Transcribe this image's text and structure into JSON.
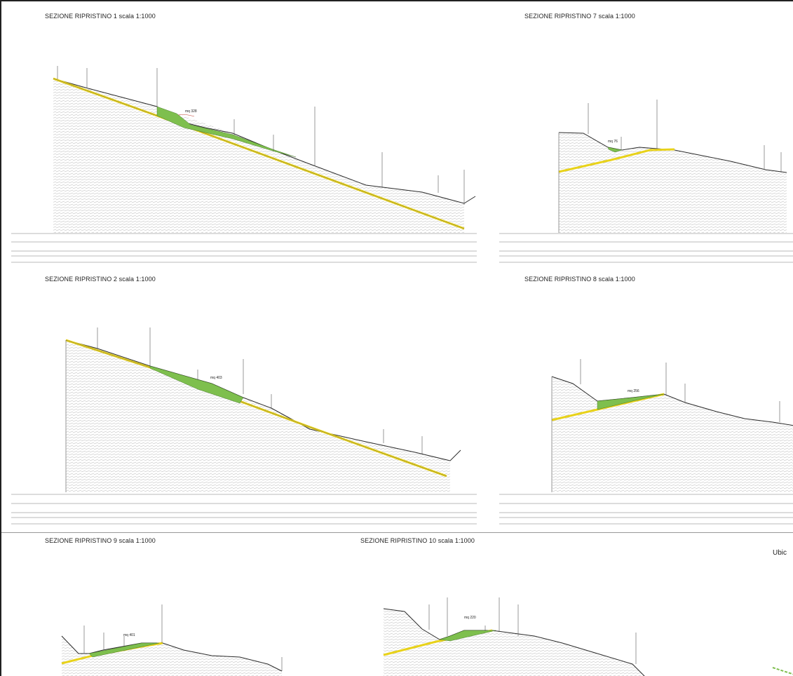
{
  "colors": {
    "ground_line": "#2b2b2b",
    "hatch": "#b9b9b9",
    "sliding_surface": "#e8d21a",
    "restoration_fill": "#7ebf4e",
    "frame": "#222222",
    "annotation": "#c0392b"
  },
  "sections": [
    {
      "id": "s1",
      "title": "SEZIONE RIPRISTINO 1  scala 1:1000",
      "fill_label": "mq 328"
    },
    {
      "id": "s7",
      "title": "SEZIONE RIPRISTINO 7  scala 1:1000",
      "fill_label": "mq 76"
    },
    {
      "id": "s2",
      "title": "SEZIONE RIPRISTINO 2  scala 1:1000",
      "fill_label": "mq 403"
    },
    {
      "id": "s8",
      "title": "SEZIONE RIPRISTINO 8  scala 1:1000",
      "fill_label": "mq 256"
    },
    {
      "id": "s9",
      "title": "SEZIONE RIPRISTINO 9  scala 1:1000",
      "fill_label": "mq 401"
    },
    {
      "id": "s10",
      "title": "SEZIONE RIPRISTINO 10  scala 1:1000",
      "fill_label": "mq 220"
    }
  ],
  "side_label": "Ubic"
}
